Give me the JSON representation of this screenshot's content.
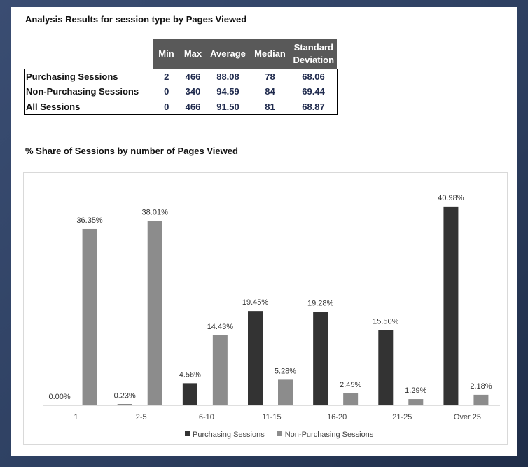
{
  "table": {
    "title": "Analysis Results for session type by Pages Viewed",
    "headers": [
      "Min",
      "Max",
      "Average",
      "Median",
      "Standard Deviation"
    ],
    "rows": [
      {
        "label": "Purchasing Sessions",
        "values": [
          "2",
          "466",
          "88.08",
          "78",
          "68.06"
        ]
      },
      {
        "label": "Non-Purchasing Sessions",
        "values": [
          "0",
          "340",
          "94.59",
          "84",
          "69.44"
        ]
      },
      {
        "label": "All Sessions",
        "values": [
          "0",
          "466",
          "91.50",
          "81",
          "68.87"
        ]
      }
    ]
  },
  "chart_title": "% Share of Sessions by number of Pages Viewed",
  "chart_data": {
    "type": "bar",
    "categories": [
      "1",
      "2-5",
      "6-10",
      "11-15",
      "16-20",
      "21-25",
      "Over 25"
    ],
    "series": [
      {
        "name": "Purchasing Sessions",
        "color": "#333333",
        "values": [
          0.0,
          0.23,
          4.56,
          19.45,
          19.28,
          15.5,
          40.98
        ],
        "labels": [
          "0.00%",
          "0.23%",
          "4.56%",
          "19.45%",
          "19.28%",
          "15.50%",
          "40.98%"
        ]
      },
      {
        "name": "Non-Purchasing Sessions",
        "color": "#8c8c8c",
        "values": [
          36.35,
          38.01,
          14.43,
          5.28,
          2.45,
          1.29,
          2.18
        ],
        "labels": [
          "36.35%",
          "38.01%",
          "14.43%",
          "5.28%",
          "2.45%",
          "1.29%",
          "2.18%"
        ]
      }
    ],
    "ylim": [
      0,
      45
    ],
    "grid": false,
    "legend": "bottom"
  }
}
